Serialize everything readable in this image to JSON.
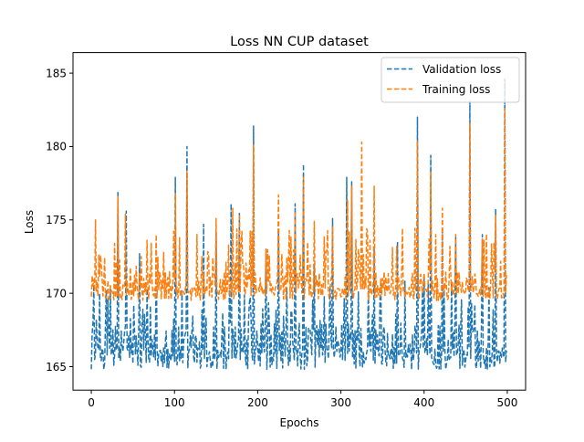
{
  "chart_data": {
    "type": "line",
    "title": "Loss NN CUP dataset",
    "xlabel": "Epochs",
    "ylabel": "Loss",
    "xlim": [
      -22,
      522
    ],
    "ylim": [
      163.4,
      186.4
    ],
    "xticks": [
      0,
      100,
      200,
      300,
      400,
      500
    ],
    "yticks": [
      165,
      170,
      175,
      180,
      185
    ],
    "xtick_labels": [
      "0",
      "100",
      "200",
      "300",
      "400",
      "500"
    ],
    "ytick_labels": [
      "165",
      "170",
      "175",
      "180",
      "185"
    ],
    "grid": false,
    "legend_position": "top-right",
    "n_points": 500,
    "series": [
      {
        "name": "Validation loss",
        "color": "#1f77b4",
        "linestyle": "dashed",
        "baseline": [
          164.8,
          168.0
        ],
        "peaks": [
          [
            3,
            170.6
          ],
          [
            18,
            170.2
          ],
          [
            32,
            176.9
          ],
          [
            42,
            175.6
          ],
          [
            58,
            172.7
          ],
          [
            78,
            173.5
          ],
          [
            101,
            177.9
          ],
          [
            115,
            180.0
          ],
          [
            135,
            174.7
          ],
          [
            150,
            174.2
          ],
          [
            168,
            176.1
          ],
          [
            178,
            175.5
          ],
          [
            195,
            181.4
          ],
          [
            210,
            173.0
          ],
          [
            225,
            174.2
          ],
          [
            245,
            176.1
          ],
          [
            255,
            178.8
          ],
          [
            268,
            172.0
          ],
          [
            290,
            175.1
          ],
          [
            307,
            177.9
          ],
          [
            313,
            177.6
          ],
          [
            340,
            173.0
          ],
          [
            368,
            173.5
          ],
          [
            392,
            182.0
          ],
          [
            408,
            179.4
          ],
          [
            422,
            174.3
          ],
          [
            438,
            173.8
          ],
          [
            455,
            183.1
          ],
          [
            470,
            174.0
          ],
          [
            486,
            175.7
          ],
          [
            497,
            184.6
          ]
        ]
      },
      {
        "name": "Training loss",
        "color": "#ff7f0e",
        "linestyle": "dashed",
        "baseline": [
          169.5,
          171.5
        ],
        "peaks": [
          [
            5,
            175.0
          ],
          [
            28,
            173.4
          ],
          [
            32,
            176.6
          ],
          [
            41,
            175.4
          ],
          [
            60,
            172.5
          ],
          [
            78,
            174.0
          ],
          [
            101,
            176.8
          ],
          [
            115,
            178.3
          ],
          [
            133,
            172.5
          ],
          [
            150,
            175.1
          ],
          [
            170,
            175.8
          ],
          [
            178,
            175.4
          ],
          [
            195,
            180.1
          ],
          [
            210,
            173.0
          ],
          [
            225,
            176.7
          ],
          [
            245,
            175.6
          ],
          [
            255,
            177.9
          ],
          [
            268,
            174.9
          ],
          [
            290,
            174.6
          ],
          [
            308,
            176.3
          ],
          [
            313,
            177.3
          ],
          [
            325,
            180.3
          ],
          [
            340,
            177.3
          ],
          [
            367,
            173.2
          ],
          [
            392,
            180.4
          ],
          [
            408,
            178.3
          ],
          [
            422,
            175.8
          ],
          [
            438,
            174.0
          ],
          [
            455,
            181.6
          ],
          [
            470,
            173.7
          ],
          [
            486,
            175.3
          ],
          [
            497,
            182.6
          ]
        ]
      }
    ]
  }
}
